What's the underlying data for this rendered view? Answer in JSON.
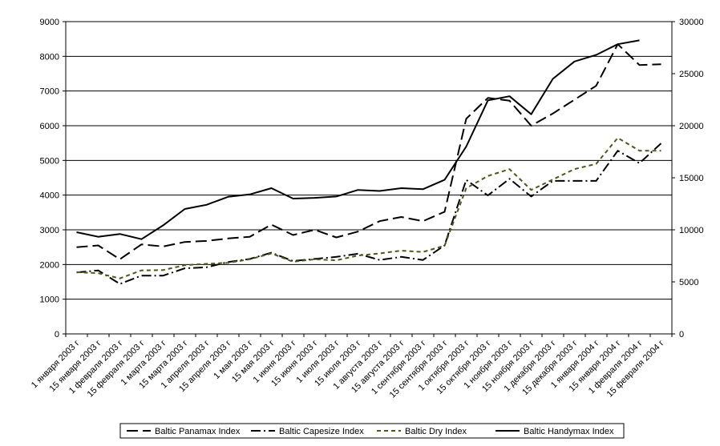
{
  "chart_data": {
    "type": "line",
    "categories": [
      "1 января 2003 г",
      "15 января 2003 г",
      "1 февраля 2003 г",
      "15 февраля 2003 г",
      "1 марта 2003 г",
      "15 марта 2003 г",
      "1 апреля 2003 г",
      "15 апреля 2003 г",
      "1 мая 2003 г",
      "15 мая 2003 г",
      "1 июня 2003 г",
      "15 июня 2003 г",
      "1 июля 2003 г",
      "15 июля 2003 г",
      "1 августа 2003 г",
      "15 августа 2003 г",
      "1 сентября 2003 г",
      "15 сентября 2003 г",
      "1 октября 2003 г",
      "15 октября 2003 г",
      "1 ноября 2003 г",
      "15 ноября 2003 г",
      "1 декабря 2003 г",
      "15 декабря 2003 г",
      "1 января 2004 г",
      "15 января 2004 г",
      "1 февраля 2004 г",
      "15 февраля 2004 г"
    ],
    "x_tick_labels": [
      "1 января 2003 г",
      "15 января 2003 г",
      "1 февраля 2003 г",
      "15 февраля 2003 г",
      "1 марта 2003 г",
      "15 марта 2003 г",
      "1 апреля 2003 г",
      "15 апреля 2003 г",
      "1 мая 2003 г",
      "15 мая 2003 г",
      "1 июня 2003 г",
      "15 июня 2003 г",
      "1 июля 2003 г",
      "15 июля 2003 г",
      "1 августа 2003 г",
      "15 августа 2003 г",
      "1 сентября 2003 г",
      "15 сентября 2003 г",
      "1 октября 2003 г",
      "15 октября 2003 г",
      "1 ноября 2003 г",
      "15 ноября 2003 г",
      "1 декабря 2003 г",
      "15 декабря 2003 г",
      "1 января 2004 г",
      "15 января 2004 г",
      "1 февраля 2004 г",
      "15 февраля 2004 г"
    ],
    "left_axis": {
      "ylim": [
        0,
        9000
      ],
      "ticks": [
        "0",
        "1000",
        "2000",
        "3000",
        "4000",
        "5000",
        "6000",
        "7000",
        "8000",
        "9000"
      ]
    },
    "right_axis": {
      "ylim": [
        0,
        30000
      ],
      "ticks": [
        "0",
        "5000",
        "10000",
        "15000",
        "20000",
        "25000",
        "30000"
      ]
    },
    "grid": true,
    "legend_position": "bottom",
    "series": [
      {
        "name": "Baltic Panamax Index",
        "axis": "left",
        "style": "long-dash",
        "color": "#000000",
        "values": [
          2500,
          2550,
          2150,
          2580,
          2520,
          2650,
          2680,
          2750,
          2800,
          3150,
          2850,
          3000,
          2780,
          2950,
          3250,
          3370,
          3250,
          3520,
          6200,
          6800,
          6720,
          6000,
          6350,
          6750,
          7150,
          8350,
          7750,
          7770
        ]
      },
      {
        "name": "Baltic Capesize Index",
        "axis": "right",
        "style": "dash-dot",
        "color": "#000000",
        "values": [
          5900,
          6100,
          4800,
          5600,
          5600,
          6300,
          6400,
          6900,
          7200,
          7800,
          7000,
          7200,
          7400,
          7700,
          7100,
          7400,
          7100,
          8500,
          14800,
          13300,
          14900,
          13200,
          14700,
          14700,
          14700,
          17600,
          16400,
          18300
        ]
      },
      {
        "name": "Baltic Dry Index",
        "axis": "left",
        "style": "short-dash",
        "color": "#4a5a1e",
        "values": [
          1780,
          1750,
          1600,
          1830,
          1840,
          1980,
          2020,
          2050,
          2150,
          2320,
          2080,
          2150,
          2120,
          2260,
          2320,
          2400,
          2360,
          2540,
          4200,
          4550,
          4750,
          4150,
          4450,
          4750,
          4900,
          5650,
          5280,
          5280
        ]
      },
      {
        "name": "Baltic Handymax Index",
        "axis": "left",
        "style": "solid",
        "color": "#000000",
        "values": [
          2930,
          2800,
          2880,
          2730,
          3130,
          3600,
          3720,
          3950,
          4020,
          4200,
          3900,
          3920,
          3960,
          4150,
          4120,
          4200,
          4170,
          4440,
          5400,
          6730,
          6850,
          6330,
          7350,
          7850,
          8040,
          8350,
          8460,
          null
        ]
      }
    ]
  }
}
